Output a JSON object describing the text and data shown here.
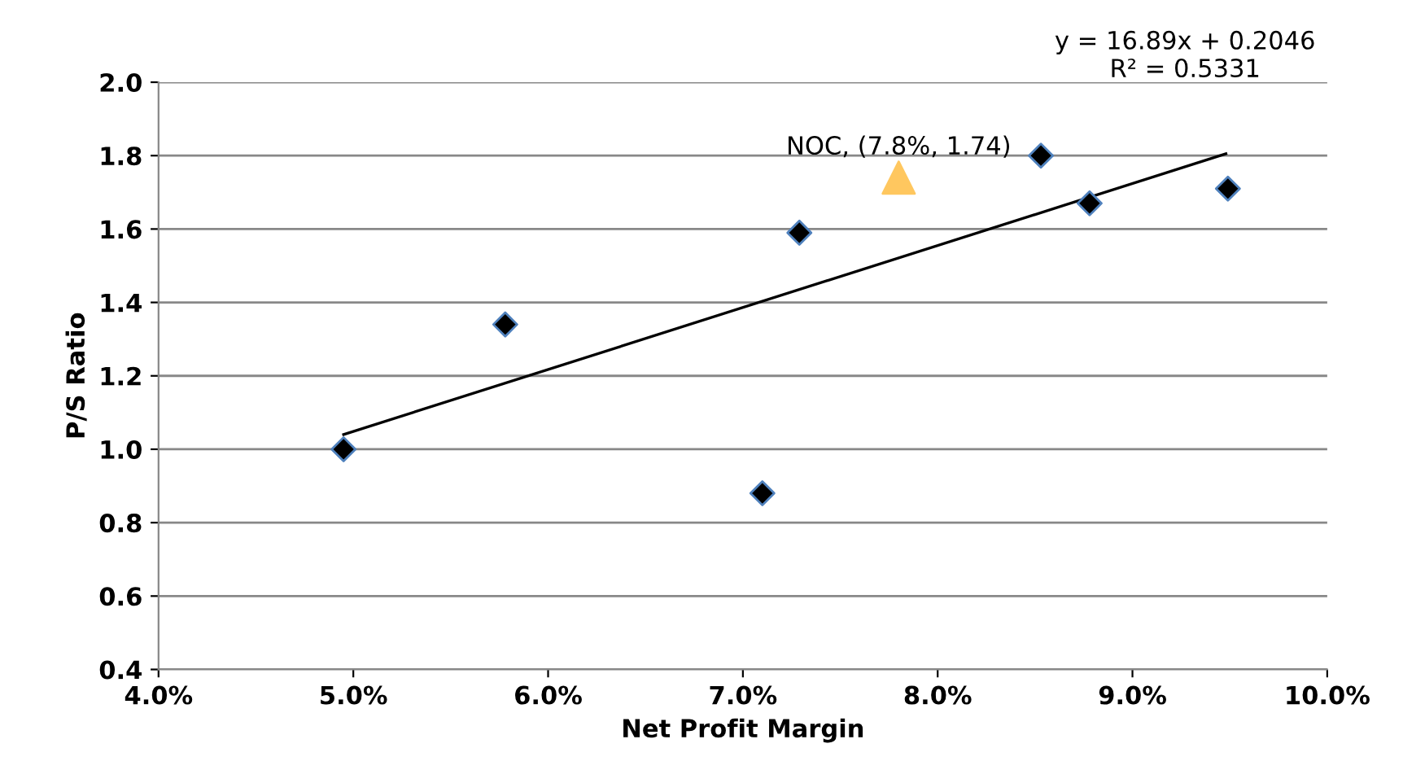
{
  "chart_data": {
    "type": "scatter",
    "xlabel": "Net Profit Margin",
    "ylabel": "P/S Ratio",
    "xlim": [
      4.0,
      10.0
    ],
    "ylim": [
      0.4,
      2.0
    ],
    "xticks": [
      {
        "value": 4.0,
        "label": "4.0%"
      },
      {
        "value": 5.0,
        "label": "5.0%"
      },
      {
        "value": 6.0,
        "label": "6.0%"
      },
      {
        "value": 7.0,
        "label": "7.0%"
      },
      {
        "value": 8.0,
        "label": "8.0%"
      },
      {
        "value": 9.0,
        "label": "9.0%"
      },
      {
        "value": 10.0,
        "label": "10.0%"
      }
    ],
    "yticks": [
      {
        "value": 0.4,
        "label": "0.4"
      },
      {
        "value": 0.6,
        "label": "0.6"
      },
      {
        "value": 0.8,
        "label": "0.8"
      },
      {
        "value": 1.0,
        "label": "1.0"
      },
      {
        "value": 1.2,
        "label": "1.2"
      },
      {
        "value": 1.4,
        "label": "1.4"
      },
      {
        "value": 1.6,
        "label": "1.6"
      },
      {
        "value": 1.8,
        "label": "1.8"
      },
      {
        "value": 2.0,
        "label": "2.0"
      }
    ],
    "grid": "y",
    "legend": false,
    "series": [
      {
        "marker": "diamond",
        "color": "#000000",
        "x": [
          4.95,
          5.78,
          7.29,
          7.1,
          8.53,
          8.78,
          9.49
        ],
        "values": [
          1.0,
          1.34,
          1.59,
          0.88,
          1.8,
          1.67,
          1.71
        ]
      },
      {
        "marker": "triangle",
        "color": "#ffc75f",
        "x": [
          7.8
        ],
        "values": [
          1.74
        ]
      },
      {
        "type": "line",
        "marker": "none",
        "line_style": "solid",
        "color": "#000000",
        "x": [
          4.95,
          9.48
        ],
        "values": [
          1.04,
          1.805
        ]
      }
    ],
    "annotations": [
      "y = 16.89x + 0.2046\nR² = 0.5331",
      {
        "text": "NOC, (7.8%, 1.74)",
        "x": 7.8,
        "y": 1.74
      }
    ]
  }
}
